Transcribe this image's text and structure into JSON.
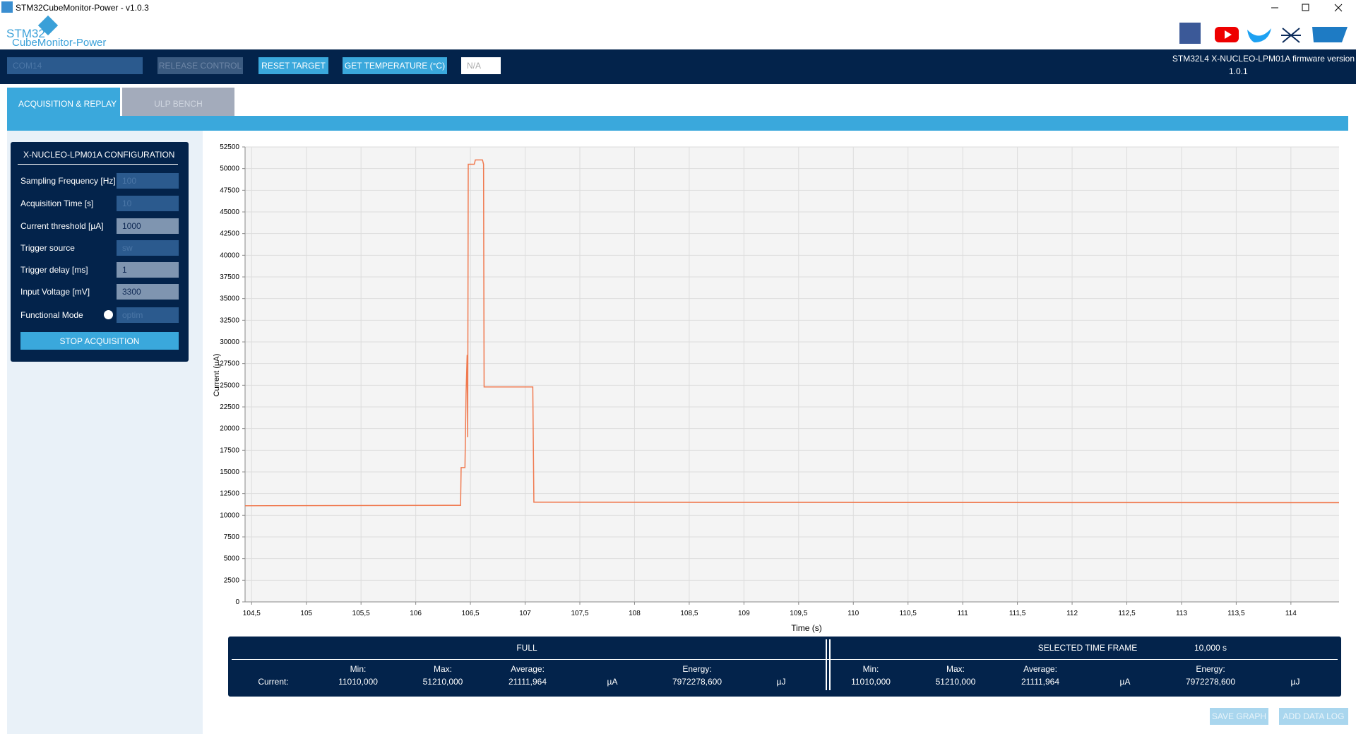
{
  "window": {
    "title": "STM32CubeMonitor-Power - v1.0.3"
  },
  "logo": {
    "line1": "STM32",
    "line2": "CubeMonitor-Power"
  },
  "toolbar": {
    "port": "COM14",
    "release": "RELEASE CONTROL",
    "reset": "RESET TARGET",
    "temperature": "GET TEMPERATURE (°C)",
    "temperature_value": "N/A",
    "firmware": "STM32L4 X-NUCLEO-LPM01A firmware version",
    "firmware_version": "1.0.1"
  },
  "tabs": [
    "ACQUISITION & REPLAY",
    "ULP BENCH"
  ],
  "config": {
    "title": "X-NUCLEO-LPM01A CONFIGURATION",
    "rows": [
      [
        "Sampling Frequency [Hz]",
        "100"
      ],
      [
        "Acquisition Time [s]",
        "10"
      ],
      [
        "Current threshold [µA]",
        "1000"
      ],
      [
        "Trigger source",
        "sw"
      ],
      [
        "Trigger delay [ms]",
        "1"
      ],
      [
        "Input Voltage [mV]",
        "3300"
      ],
      [
        "Functional Mode",
        "optim"
      ]
    ],
    "button": "STOP ACQUISITION"
  },
  "chart_data": {
    "type": "line",
    "x_label": "Time (s)",
    "y_label": "Current (µA)",
    "color": "#f07a50",
    "grid": true,
    "x": [
      104.44,
      106.41,
      106.415,
      106.45,
      106.46,
      106.47,
      106.475,
      106.48,
      106.5,
      106.535,
      106.545,
      106.61,
      106.62,
      106.625,
      107.07,
      107.08,
      107.1,
      114.44
    ],
    "values": [
      11100,
      11150,
      15500,
      15500,
      24000,
      28500,
      19000,
      50500,
      50500,
      50500,
      51000,
      51000,
      50500,
      24800,
      24800,
      11500,
      11500,
      11450
    ],
    "xlim": [
      104.44,
      114.44
    ],
    "xticks": [
      {
        "value": 104.5,
        "label": "104,5"
      },
      105,
      {
        "value": 105.5,
        "label": "105,5"
      },
      106,
      {
        "value": 106.5,
        "label": "106,5"
      },
      107,
      {
        "value": 107.5,
        "label": "107,5"
      },
      108,
      {
        "value": 108.5,
        "label": "108,5"
      },
      109,
      {
        "value": 109.5,
        "label": "109,5"
      },
      110,
      {
        "value": 110.5,
        "label": "110,5"
      },
      111,
      {
        "value": 111.5,
        "label": "111,5"
      },
      112,
      {
        "value": 112.5,
        "label": "112,5"
      },
      113,
      {
        "value": 113.5,
        "label": "113,5"
      },
      114
    ],
    "ylim": [
      0,
      52500
    ],
    "yticks": [
      0,
      2500,
      5000,
      7500,
      10000,
      12500,
      15000,
      17500,
      20000,
      22500,
      25000,
      27500,
      30000,
      32500,
      35000,
      37500,
      40000,
      42500,
      45000,
      47500,
      50000,
      52500
    ]
  },
  "summary": {
    "full": {
      "title": "FULL",
      "headers": [
        "Min:",
        "Max:",
        "Average:",
        "Energy:"
      ],
      "row_label": "Current:",
      "values": [
        "11010,000",
        "51210,000",
        "21111,964",
        "7972278,600"
      ],
      "units": [
        "µA",
        "µJ"
      ]
    },
    "selected": {
      "title": "SELECTED TIME FRAME",
      "duration": "10,000 s",
      "headers": [
        "Min:",
        "Max:",
        "Average:",
        "Energy:"
      ],
      "values": [
        "11010,000",
        "51210,000",
        "21111,964",
        "7972278,600"
      ],
      "units": [
        "µA",
        "µJ"
      ]
    }
  },
  "buttons": [
    "SAVE GRAPH",
    "ADD DATA LOG"
  ]
}
